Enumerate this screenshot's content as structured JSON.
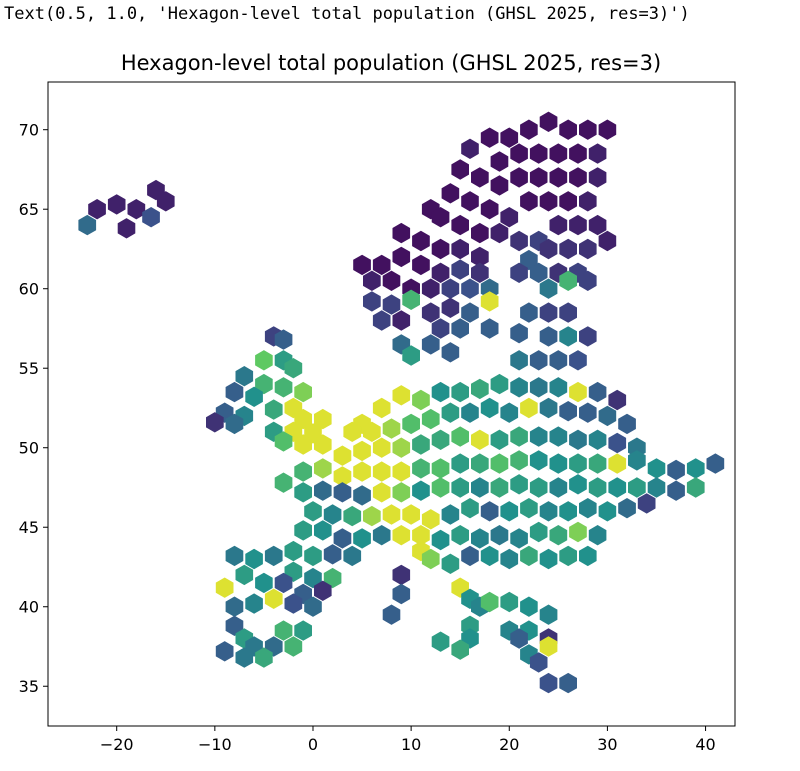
{
  "output_repr": "Text(0.5, 1.0, 'Hexagon-level total population (GHSL 2025, res=3)')",
  "chart_data": {
    "type": "heatmap",
    "title": "Hexagon-level total population (GHSL 2025, res=3)",
    "xlabel": "",
    "ylabel": "",
    "xlim": [
      -27,
      43
    ],
    "ylim": [
      32.5,
      73
    ],
    "xticks": [
      -20,
      -10,
      0,
      10,
      20,
      30,
      40
    ],
    "yticks": [
      35,
      40,
      45,
      50,
      55,
      60,
      65,
      70
    ],
    "xtick_labels": [
      "−20",
      "−10",
      "0",
      "10",
      "20",
      "30",
      "40"
    ],
    "ytick_labels": [
      "35",
      "40",
      "45",
      "50",
      "55",
      "60",
      "65",
      "70"
    ],
    "grid": false,
    "colormap": "viridis",
    "colormap_stops": [
      "#440154",
      "#3b528b",
      "#21918c",
      "#5ec962",
      "#fde725"
    ],
    "hexagons": [
      [
        -22,
        65,
        0.1
      ],
      [
        -20,
        65.3,
        0.1
      ],
      [
        -18,
        65,
        0.1
      ],
      [
        -16,
        66.2,
        0.1
      ],
      [
        -15,
        65.5,
        0.1
      ],
      [
        -16.5,
        64.5,
        0.25
      ],
      [
        -19,
        63.8,
        0.1
      ],
      [
        -23,
        64,
        0.35
      ],
      [
        24,
        70.5,
        0.05
      ],
      [
        26,
        70,
        0.05
      ],
      [
        28,
        70,
        0.05
      ],
      [
        30,
        70,
        0.05
      ],
      [
        22,
        70,
        0.05
      ],
      [
        20,
        69.5,
        0.05
      ],
      [
        18,
        69.5,
        0.05
      ],
      [
        16,
        68.8,
        0.1
      ],
      [
        19,
        68,
        0.05
      ],
      [
        21,
        68.5,
        0.05
      ],
      [
        23,
        68.5,
        0.05
      ],
      [
        25,
        68.5,
        0.05
      ],
      [
        27,
        68.5,
        0.05
      ],
      [
        29,
        68.5,
        0.1
      ],
      [
        15,
        67.5,
        0.05
      ],
      [
        17,
        67,
        0.05
      ],
      [
        19,
        66.5,
        0.05
      ],
      [
        21,
        67,
        0.05
      ],
      [
        23,
        67,
        0.05
      ],
      [
        25,
        67,
        0.05
      ],
      [
        27,
        67,
        0.05
      ],
      [
        29,
        67,
        0.1
      ],
      [
        14,
        66,
        0.05
      ],
      [
        16,
        65.5,
        0.05
      ],
      [
        18,
        65,
        0.05
      ],
      [
        20,
        64.5,
        0.1
      ],
      [
        22,
        65.5,
        0.05
      ],
      [
        24,
        65.5,
        0.05
      ],
      [
        26,
        65.5,
        0.05
      ],
      [
        28,
        65.5,
        0.1
      ],
      [
        12,
        65,
        0.05
      ],
      [
        13,
        64.5,
        0.05
      ],
      [
        15,
        64,
        0.05
      ],
      [
        17,
        63.5,
        0.05
      ],
      [
        19,
        63.5,
        0.1
      ],
      [
        21,
        63,
        0.15
      ],
      [
        23,
        63,
        0.2
      ],
      [
        25,
        64,
        0.1
      ],
      [
        27,
        64,
        0.1
      ],
      [
        29,
        64,
        0.1
      ],
      [
        9,
        63.5,
        0.05
      ],
      [
        11,
        63,
        0.05
      ],
      [
        13,
        62.5,
        0.05
      ],
      [
        15,
        62.5,
        0.1
      ],
      [
        17,
        62,
        0.1
      ],
      [
        22,
        61.8,
        0.3
      ],
      [
        24,
        62.5,
        0.15
      ],
      [
        26,
        62.5,
        0.15
      ],
      [
        28,
        62.5,
        0.15
      ],
      [
        30,
        63,
        0.1
      ],
      [
        5,
        61.5,
        0.05
      ],
      [
        7,
        61.5,
        0.05
      ],
      [
        9,
        62,
        0.05
      ],
      [
        11,
        61.5,
        0.05
      ],
      [
        13,
        61,
        0.1
      ],
      [
        15,
        61.2,
        0.2
      ],
      [
        17,
        61,
        0.15
      ],
      [
        21,
        61,
        0.2
      ],
      [
        23,
        61,
        0.3
      ],
      [
        25,
        61,
        0.15
      ],
      [
        27,
        61,
        0.2
      ],
      [
        6,
        60.5,
        0.1
      ],
      [
        8,
        60.5,
        0.05
      ],
      [
        10,
        60,
        0.05
      ],
      [
        12,
        60,
        0.1
      ],
      [
        14,
        60,
        0.2
      ],
      [
        16,
        60,
        0.25
      ],
      [
        18,
        60,
        0.35
      ],
      [
        24,
        60,
        0.4
      ],
      [
        26,
        60.5,
        0.65
      ],
      [
        28,
        60.5,
        0.2
      ],
      [
        6,
        59.2,
        0.2
      ],
      [
        8,
        59,
        0.2
      ],
      [
        10,
        59.3,
        0.65
      ],
      [
        12,
        58.5,
        0.15
      ],
      [
        14,
        58.8,
        0.15
      ],
      [
        16,
        58.5,
        0.3
      ],
      [
        18,
        59.2,
        0.95
      ],
      [
        22,
        58.5,
        0.3
      ],
      [
        24,
        58.5,
        0.2
      ],
      [
        26,
        58.5,
        0.2
      ],
      [
        7,
        58,
        0.2
      ],
      [
        9,
        58,
        0.1
      ],
      [
        13,
        57.5,
        0.2
      ],
      [
        15,
        57.5,
        0.3
      ],
      [
        12,
        56.5,
        0.3
      ],
      [
        14,
        56,
        0.3
      ],
      [
        18,
        57.5,
        0.3
      ],
      [
        21,
        57.2,
        0.3
      ],
      [
        24,
        57,
        0.3
      ],
      [
        26,
        57,
        0.45
      ],
      [
        28,
        57,
        0.2
      ],
      [
        -4,
        57,
        0.2
      ],
      [
        -3,
        56.8,
        0.3
      ],
      [
        9,
        56.5,
        0.35
      ],
      [
        10,
        55.8,
        0.55
      ],
      [
        21,
        55.5,
        0.4
      ],
      [
        23,
        55.5,
        0.3
      ],
      [
        25,
        55.5,
        0.3
      ],
      [
        27,
        55.5,
        0.25
      ],
      [
        -5,
        55.5,
        0.75
      ],
      [
        -3,
        55.5,
        0.55
      ],
      [
        -2,
        55,
        0.6
      ],
      [
        -7,
        54.5,
        0.4
      ],
      [
        -5,
        54,
        0.65
      ],
      [
        -3,
        53.8,
        0.65
      ],
      [
        -1,
        53.5,
        0.8
      ],
      [
        -8,
        53.5,
        0.3
      ],
      [
        -6,
        53.2,
        0.5
      ],
      [
        -2,
        52.5,
        0.95
      ],
      [
        -4,
        52.4,
        0.6
      ],
      [
        -7,
        52,
        0.45
      ],
      [
        -9,
        52.2,
        0.3
      ],
      [
        -8,
        51.5,
        0.35
      ],
      [
        -1,
        51.8,
        0.95
      ],
      [
        1,
        51.8,
        0.95
      ],
      [
        0,
        50.9,
        0.95
      ],
      [
        -2,
        51,
        0.95
      ],
      [
        -4,
        51,
        0.55
      ],
      [
        -10,
        51.6,
        0.15
      ],
      [
        1,
        50.2,
        0.95
      ],
      [
        -1,
        50.2,
        0.95
      ],
      [
        -3,
        50.4,
        0.7
      ],
      [
        5,
        51.5,
        0.95
      ],
      [
        7,
        52.5,
        0.95
      ],
      [
        9,
        53.3,
        0.95
      ],
      [
        11,
        53,
        0.8
      ],
      [
        13,
        53.5,
        0.5
      ],
      [
        15,
        53.5,
        0.55
      ],
      [
        17,
        53.7,
        0.6
      ],
      [
        19,
        54,
        0.55
      ],
      [
        21,
        53.8,
        0.45
      ],
      [
        23,
        53.8,
        0.4
      ],
      [
        25,
        53.8,
        0.45
      ],
      [
        27,
        53.5,
        0.95
      ],
      [
        29,
        53.5,
        0.3
      ],
      [
        31,
        53,
        0.15
      ],
      [
        4,
        51,
        0.95
      ],
      [
        6,
        51,
        0.95
      ],
      [
        8,
        51.2,
        0.85
      ],
      [
        10,
        51.5,
        0.7
      ],
      [
        12,
        51.8,
        0.7
      ],
      [
        14,
        52.2,
        0.55
      ],
      [
        16,
        52.2,
        0.45
      ],
      [
        18,
        52.5,
        0.5
      ],
      [
        20,
        52.2,
        0.45
      ],
      [
        22,
        52.5,
        0.95
      ],
      [
        24,
        52.5,
        0.4
      ],
      [
        26,
        52.3,
        0.3
      ],
      [
        28,
        52.2,
        0.3
      ],
      [
        30,
        52,
        0.35
      ],
      [
        32,
        51.5,
        0.3
      ],
      [
        3,
        49.5,
        0.95
      ],
      [
        5,
        49.8,
        0.95
      ],
      [
        7,
        50,
        0.95
      ],
      [
        9,
        50,
        0.85
      ],
      [
        11,
        50.2,
        0.6
      ],
      [
        13,
        50.5,
        0.6
      ],
      [
        15,
        50.7,
        0.7
      ],
      [
        17,
        50.5,
        0.95
      ],
      [
        19,
        50.5,
        0.55
      ],
      [
        21,
        50.7,
        0.6
      ],
      [
        23,
        50.7,
        0.45
      ],
      [
        25,
        50.7,
        0.45
      ],
      [
        27,
        50.5,
        0.4
      ],
      [
        29,
        50.5,
        0.45
      ],
      [
        31,
        50.3,
        0.25
      ],
      [
        33,
        50,
        0.4
      ],
      [
        -1,
        48.5,
        0.65
      ],
      [
        1,
        48.7,
        0.85
      ],
      [
        3,
        48.2,
        0.95
      ],
      [
        5,
        48.5,
        0.95
      ],
      [
        7,
        48.5,
        0.95
      ],
      [
        9,
        48.5,
        0.95
      ],
      [
        11,
        48.7,
        0.65
      ],
      [
        13,
        48.7,
        0.7
      ],
      [
        15,
        49,
        0.55
      ],
      [
        17,
        49,
        0.6
      ],
      [
        19,
        49,
        0.7
      ],
      [
        21,
        49.2,
        0.65
      ],
      [
        23,
        49.2,
        0.5
      ],
      [
        25,
        49,
        0.5
      ],
      [
        27,
        49,
        0.55
      ],
      [
        29,
        49,
        0.6
      ],
      [
        31,
        49,
        0.95
      ],
      [
        33,
        49.2,
        0.45
      ],
      [
        35,
        48.7,
        0.5
      ],
      [
        37,
        48.6,
        0.3
      ],
      [
        39,
        48.7,
        0.5
      ],
      [
        41,
        49,
        0.3
      ],
      [
        -3,
        47.8,
        0.65
      ],
      [
        -1,
        47.2,
        0.55
      ],
      [
        1,
        47.3,
        0.35
      ],
      [
        3,
        47.2,
        0.3
      ],
      [
        5,
        47,
        0.35
      ],
      [
        7,
        47.2,
        0.95
      ],
      [
        9,
        47.2,
        0.8
      ],
      [
        11,
        47.3,
        0.5
      ],
      [
        13,
        47.5,
        0.7
      ],
      [
        15,
        47.5,
        0.55
      ],
      [
        17,
        47.5,
        0.45
      ],
      [
        19,
        47.5,
        0.6
      ],
      [
        21,
        47.7,
        0.55
      ],
      [
        23,
        47.5,
        0.55
      ],
      [
        25,
        47.5,
        0.45
      ],
      [
        27,
        47.7,
        0.5
      ],
      [
        29,
        47.5,
        0.55
      ],
      [
        31,
        47.5,
        0.5
      ],
      [
        33,
        47.5,
        0.55
      ],
      [
        35,
        47.5,
        0.45
      ],
      [
        37,
        47.3,
        0.3
      ],
      [
        39,
        47.5,
        0.6
      ],
      [
        0,
        46,
        0.55
      ],
      [
        2,
        45.8,
        0.45
      ],
      [
        4,
        45.7,
        0.6
      ],
      [
        6,
        45.7,
        0.85
      ],
      [
        8,
        45.8,
        0.95
      ],
      [
        10,
        45.8,
        0.95
      ],
      [
        12,
        45.5,
        0.95
      ],
      [
        14,
        45.8,
        0.45
      ],
      [
        16,
        46.2,
        0.55
      ],
      [
        18,
        46,
        0.3
      ],
      [
        20,
        46,
        0.5
      ],
      [
        22,
        46.2,
        0.55
      ],
      [
        24,
        46,
        0.45
      ],
      [
        26,
        46,
        0.5
      ],
      [
        28,
        46.2,
        0.45
      ],
      [
        30,
        46,
        0.5
      ],
      [
        32,
        46.2,
        0.35
      ],
      [
        34,
        46.5,
        0.2
      ],
      [
        -1,
        44.8,
        0.55
      ],
      [
        1,
        44.8,
        0.5
      ],
      [
        3,
        44.3,
        0.3
      ],
      [
        5,
        44.3,
        0.5
      ],
      [
        7,
        44.5,
        0.4
      ],
      [
        9,
        44.5,
        0.95
      ],
      [
        11,
        44.5,
        0.95
      ],
      [
        13,
        44.2,
        0.5
      ],
      [
        15,
        44.5,
        0.55
      ],
      [
        17,
        44.3,
        0.45
      ],
      [
        19,
        44.5,
        0.4
      ],
      [
        21,
        44.3,
        0.45
      ],
      [
        23,
        44.7,
        0.55
      ],
      [
        25,
        44.5,
        0.6
      ],
      [
        27,
        44.7,
        0.8
      ],
      [
        29,
        44.5,
        0.45
      ],
      [
        -2,
        43.5,
        0.55
      ],
      [
        0,
        43.2,
        0.55
      ],
      [
        2,
        43.3,
        0.3
      ],
      [
        4,
        43.2,
        0.4
      ],
      [
        11,
        43.5,
        0.95
      ],
      [
        12,
        43,
        0.8
      ],
      [
        14,
        42.7,
        0.55
      ],
      [
        16,
        43.2,
        0.3
      ],
      [
        18,
        43.2,
        0.5
      ],
      [
        20,
        43,
        0.45
      ],
      [
        22,
        43.2,
        0.6
      ],
      [
        24,
        43,
        0.5
      ],
      [
        26,
        43.2,
        0.55
      ],
      [
        28,
        43.2,
        0.5
      ],
      [
        -8,
        43.2,
        0.4
      ],
      [
        -6,
        43,
        0.5
      ],
      [
        -4,
        43.2,
        0.4
      ],
      [
        -2,
        42.2,
        0.55
      ],
      [
        0,
        41.8,
        0.45
      ],
      [
        2,
        41.8,
        0.65
      ],
      [
        -7,
        42,
        0.55
      ],
      [
        -5,
        41.5,
        0.5
      ],
      [
        -3,
        41.5,
        0.25
      ],
      [
        -9,
        41.2,
        0.95
      ],
      [
        -1,
        40.8,
        0.3
      ],
      [
        1,
        41,
        0.15
      ],
      [
        -8,
        40,
        0.35
      ],
      [
        -6,
        40.2,
        0.45
      ],
      [
        -4,
        40.5,
        0.95
      ],
      [
        -2,
        40.2,
        0.25
      ],
      [
        0,
        40,
        0.35
      ],
      [
        9,
        42,
        0.15
      ],
      [
        9,
        40.8,
        0.3
      ],
      [
        8,
        39.5,
        0.3
      ],
      [
        15,
        41.2,
        0.95
      ],
      [
        16,
        40.5,
        0.5
      ],
      [
        17,
        40,
        0.45
      ],
      [
        16,
        38.8,
        0.55
      ],
      [
        16,
        38,
        0.5
      ],
      [
        15,
        37.3,
        0.6
      ],
      [
        13,
        37.8,
        0.55
      ],
      [
        18,
        40.3,
        0.7
      ],
      [
        20,
        40.3,
        0.55
      ],
      [
        22,
        40,
        0.5
      ],
      [
        24,
        39.5,
        0.45
      ],
      [
        20,
        38.5,
        0.45
      ],
      [
        22,
        38.5,
        0.5
      ],
      [
        24,
        38,
        0.15
      ],
      [
        21,
        38,
        0.3
      ],
      [
        22,
        37,
        0.45
      ],
      [
        23,
        36.5,
        0.25
      ],
      [
        24,
        37.5,
        0.95
      ],
      [
        -8,
        38.8,
        0.3
      ],
      [
        -7,
        38,
        0.55
      ],
      [
        -6,
        37.5,
        0.4
      ],
      [
        -4,
        37.5,
        0.35
      ],
      [
        -2,
        37.5,
        0.65
      ],
      [
        -9,
        37.2,
        0.3
      ],
      [
        -5,
        36.8,
        0.6
      ],
      [
        -7,
        36.8,
        0.4
      ],
      [
        -3,
        38.5,
        0.65
      ],
      [
        -1,
        38.5,
        0.55
      ],
      [
        24,
        35.2,
        0.25
      ],
      [
        26,
        35.2,
        0.3
      ]
    ]
  }
}
